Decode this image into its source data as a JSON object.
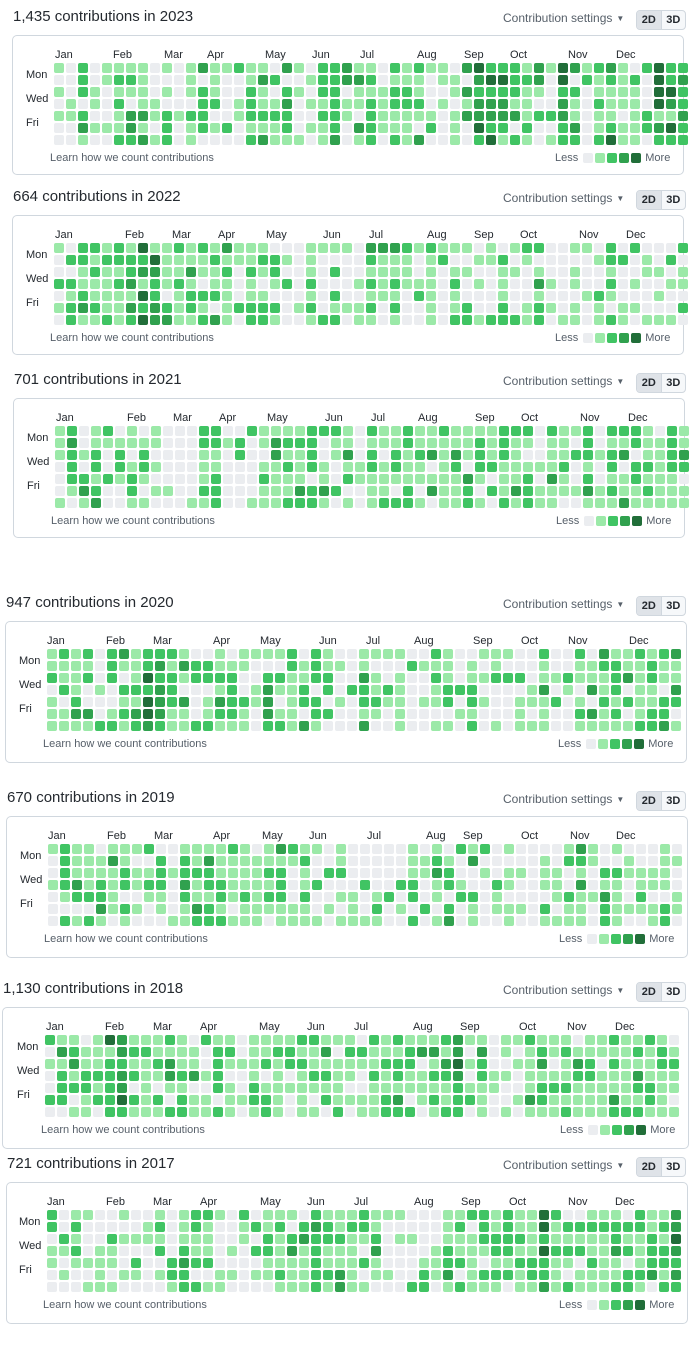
{
  "colors": {
    "levels": [
      "#ebedf0",
      "#9be9a8",
      "#40c463",
      "#30a14e",
      "#216e39"
    ]
  },
  "common": {
    "settings_label": "Contribution settings",
    "toggle_2d": "2D",
    "toggle_3d": "3D",
    "learn_link": "Learn how we count contributions",
    "legend_less": "Less",
    "legend_more": "More",
    "day_labels": [
      "Mon",
      "Wed",
      "Fri"
    ]
  },
  "years": [
    {
      "title": "1,435 contributions in 2023",
      "months": [
        "Jan",
        "Feb",
        "Mar",
        "Apr",
        "May",
        "Jun",
        "Jul",
        "Aug",
        "Sep",
        "Oct",
        "Nov",
        "Dec"
      ],
      "weekly_levels": [
        1,
        1,
        2,
        1,
        1,
        2,
        2,
        2,
        1,
        2,
        1,
        1,
        2,
        2,
        1,
        1,
        2,
        2,
        2,
        2,
        1,
        1,
        2,
        2,
        2,
        2,
        2,
        1,
        2,
        2,
        2,
        1,
        1,
        2,
        2,
        3,
        3,
        3,
        2,
        2,
        2,
        2,
        3,
        2,
        1,
        2,
        3,
        2,
        2,
        2,
        3,
        3,
        3
      ]
    },
    {
      "title": "664 contributions in 2022",
      "months": [
        "Jan",
        "Feb",
        "Mar",
        "Apr",
        "May",
        "Jun",
        "Jul",
        "Aug",
        "Sep",
        "Oct",
        "Nov",
        "Dec"
      ],
      "weekly_levels": [
        1,
        2,
        2,
        2,
        2,
        2,
        2,
        3,
        3,
        2,
        2,
        2,
        2,
        2,
        2,
        1,
        2,
        2,
        1,
        1,
        1,
        2,
        1,
        1,
        1,
        1,
        2,
        2,
        2,
        1,
        1,
        2,
        1,
        1,
        1,
        1,
        1,
        2,
        1,
        1,
        2,
        1,
        1,
        1,
        1,
        1,
        2,
        1,
        1,
        1,
        1,
        1,
        1
      ]
    },
    {
      "title": "701 contributions in 2021",
      "months": [
        "Jan",
        "Feb",
        "Mar",
        "Apr",
        "May",
        "Jun",
        "Jul",
        "Aug",
        "Sep",
        "Oct",
        "Nov",
        "Dec"
      ],
      "weekly_levels": [
        1,
        2,
        2,
        2,
        1,
        1,
        1,
        1,
        1,
        1,
        1,
        1,
        2,
        2,
        1,
        1,
        1,
        1,
        2,
        2,
        2,
        2,
        2,
        2,
        2,
        1,
        2,
        2,
        2,
        2,
        2,
        2,
        2,
        2,
        2,
        2,
        2,
        2,
        2,
        2,
        1,
        2,
        2,
        1,
        2,
        1,
        2,
        2,
        2,
        2,
        2,
        2,
        2
      ]
    },
    {
      "title": "947 contributions in 2020",
      "months": [
        "Jan",
        "Feb",
        "Mar",
        "Apr",
        "May",
        "Jun",
        "Jul",
        "Aug",
        "Sep",
        "Oct",
        "Nov",
        "Dec"
      ],
      "weekly_levels": [
        1,
        2,
        2,
        2,
        1,
        2,
        2,
        2,
        3,
        3,
        2,
        2,
        1,
        2,
        2,
        2,
        1,
        1,
        2,
        1,
        2,
        2,
        2,
        2,
        1,
        1,
        2,
        1,
        1,
        2,
        1,
        1,
        2,
        2,
        1,
        1,
        1,
        1,
        1,
        1,
        1,
        2,
        1,
        1,
        2,
        2,
        2,
        2,
        2,
        2,
        2,
        2,
        2
      ]
    },
    {
      "title": "670 contributions in 2019",
      "months": [
        "Jan",
        "Feb",
        "Mar",
        "Apr",
        "May",
        "Jun",
        "Jul",
        "Aug",
        "Sep",
        "Oct",
        "Nov",
        "Dec"
      ],
      "weekly_levels": [
        1,
        2,
        2,
        2,
        2,
        2,
        2,
        1,
        1,
        1,
        1,
        2,
        2,
        2,
        2,
        2,
        2,
        2,
        2,
        2,
        1,
        2,
        1,
        1,
        1,
        1,
        1,
        1,
        1,
        1,
        2,
        1,
        2,
        2,
        1,
        2,
        1,
        1,
        1,
        1,
        1,
        1,
        1,
        2,
        2,
        1,
        2,
        2,
        1,
        1,
        2,
        2,
        1
      ]
    },
    {
      "title": "1,130 contributions in 2018",
      "months": [
        "Jan",
        "Feb",
        "Mar",
        "Apr",
        "May",
        "Jun",
        "Jul",
        "Aug",
        "Sep",
        "Oct",
        "Nov",
        "Dec"
      ],
      "weekly_levels": [
        1,
        2,
        2,
        2,
        2,
        3,
        3,
        2,
        2,
        2,
        2,
        2,
        2,
        2,
        2,
        2,
        1,
        2,
        2,
        2,
        2,
        2,
        2,
        2,
        2,
        2,
        2,
        2,
        2,
        2,
        2,
        2,
        2,
        2,
        3,
        2,
        2,
        1,
        1,
        1,
        2,
        2,
        2,
        2,
        2,
        2,
        2,
        2,
        2,
        2,
        2,
        2,
        2
      ]
    },
    {
      "title": "721 contributions in 2017",
      "months": [
        "Jan",
        "Feb",
        "Mar",
        "Apr",
        "May",
        "Jun",
        "Jul",
        "Aug",
        "Sep",
        "Oct",
        "Nov",
        "Dec"
      ],
      "weekly_levels": [
        1,
        1,
        1,
        1,
        1,
        1,
        1,
        1,
        1,
        1,
        1,
        2,
        2,
        2,
        1,
        1,
        1,
        1,
        2,
        2,
        2,
        2,
        2,
        2,
        2,
        2,
        2,
        2,
        1,
        1,
        1,
        1,
        1,
        2,
        2,
        2,
        2,
        2,
        2,
        2,
        2,
        3,
        2,
        2,
        2,
        2,
        2,
        2,
        2,
        2,
        2,
        2,
        3
      ]
    }
  ]
}
